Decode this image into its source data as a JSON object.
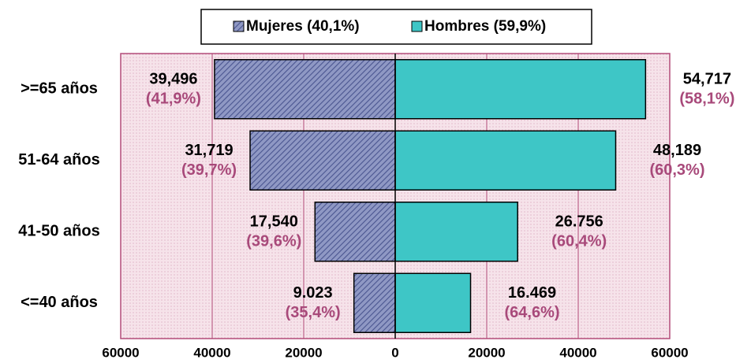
{
  "chart_data": {
    "type": "pyramid",
    "categories": [
      ">=65 años",
      "51-64 años",
      "41-50 años",
      "<=40 años"
    ],
    "series": [
      {
        "name": "Mujeres (40,1%)",
        "color": "#6f7bb0",
        "side": "left",
        "values": [
          39496,
          31719,
          17540,
          9023
        ],
        "value_labels": [
          "39,496",
          "31,719",
          "17,540",
          "9.023"
        ],
        "share_labels": [
          "(41,9%)",
          "(39,7%)",
          "(39,6%)",
          "(35,4%)"
        ]
      },
      {
        "name": "Hombres (59,9%)",
        "color": "#3ec6c6",
        "side": "right",
        "values": [
          54717,
          48189,
          26756,
          16469
        ],
        "value_labels": [
          "54,717",
          "48,189",
          "26.756",
          "16.469"
        ],
        "share_labels": [
          "(58,1%)",
          "(60,3%)",
          "(60,4%)",
          "(64,6%)"
        ]
      }
    ],
    "xlim": [
      -60000,
      60000
    ],
    "xticks": [
      {
        "value": -60000,
        "label": "60000"
      },
      {
        "value": -40000,
        "label": "40000"
      },
      {
        "value": -20000,
        "label": "20000"
      },
      0,
      20000,
      40000,
      60000
    ],
    "grid": true
  }
}
